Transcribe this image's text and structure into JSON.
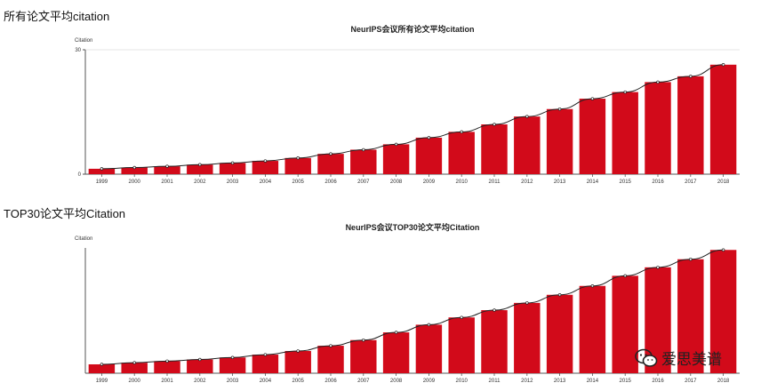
{
  "section1": {
    "heading": "所有论文平均citation"
  },
  "section2": {
    "heading": "TOP30论文平均Citation"
  },
  "watermark": {
    "text": "爱思美谱",
    "icon": "wechat-icon"
  },
  "colors": {
    "bar": "#d20a1a",
    "line": "#222222",
    "axis": "#555555"
  },
  "chart_data": [
    {
      "type": "bar",
      "title": "NeurIPS会议所有论文平均citation",
      "ylabel": "Citation",
      "xlabel": "",
      "categories": [
        "1999",
        "2000",
        "2001",
        "2002",
        "2003",
        "2004",
        "2005",
        "2006",
        "2007",
        "2008",
        "2009",
        "2010",
        "2011",
        "2012",
        "2013",
        "2014",
        "2015",
        "2016",
        "2017",
        "2018"
      ],
      "values": [
        1.3,
        1.6,
        1.9,
        2.3,
        2.7,
        3.2,
        3.9,
        4.9,
        5.9,
        7.2,
        8.8,
        10.2,
        12.0,
        13.9,
        15.7,
        18.2,
        19.8,
        22.2,
        23.6,
        26.4
      ],
      "overlay_line": true,
      "ylim": [
        0,
        30
      ],
      "yticks": [
        "0",
        "30"
      ],
      "grid": false
    },
    {
      "type": "bar",
      "title": "NeurIPS会议TOP30论文平均Citation",
      "ylabel": "Citation",
      "xlabel": "",
      "categories": [
        "1999",
        "2000",
        "2001",
        "2002",
        "2003",
        "2004",
        "2005",
        "2006",
        "2007",
        "2008",
        "2009",
        "2010",
        "2011",
        "2012",
        "2013",
        "2014",
        "2015",
        "2016",
        "2017",
        "2018"
      ],
      "values": [
        2.2,
        2.6,
        3.0,
        3.4,
        3.9,
        4.6,
        5.5,
        6.8,
        8.2,
        10.1,
        12.0,
        13.8,
        15.6,
        17.4,
        19.4,
        21.6,
        24.1,
        26.2,
        28.2,
        30.5
      ],
      "overlay_line": true,
      "ylim": [
        0,
        31
      ],
      "yticks": [],
      "grid": false
    }
  ]
}
